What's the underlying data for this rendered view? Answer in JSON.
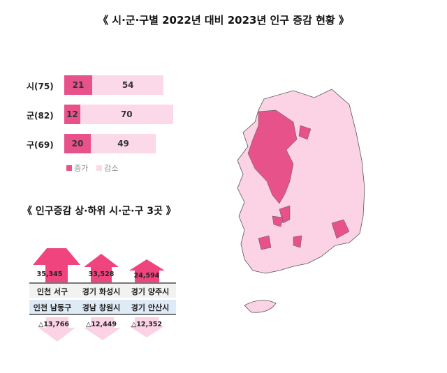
{
  "title": "《 시·군·구별 2022년 대비 2023년 인구 증감 현황 》",
  "chart_data": {
    "type": "bar",
    "stacked": true,
    "orientation": "horizontal",
    "categories": [
      "시(75)",
      "군(82)",
      "구(69)"
    ],
    "series": [
      {
        "name": "증가",
        "values": [
          21,
          12,
          20
        ],
        "color": "#e8528a"
      },
      {
        "name": "감소",
        "values": [
          54,
          70,
          49
        ],
        "color": "#fcd9e8"
      }
    ],
    "legend": "bottom"
  },
  "subtitle": "《 인구증감 상·하위 시·군·구 3곳 》",
  "top": [
    {
      "name": "인천 서구",
      "value": "35,345"
    },
    {
      "name": "경기 화성시",
      "value": "33,528"
    },
    {
      "name": "경기 양주시",
      "value": "24,594"
    }
  ],
  "bottom": [
    {
      "name": "인천 남동구",
      "value": "△13,766"
    },
    {
      "name": "경남 창원시",
      "value": "△12,449"
    },
    {
      "name": "경기 안산시",
      "value": "△12,352"
    }
  ],
  "colors": {
    "increase": "#e8528a",
    "decrease": "#fcd9e8",
    "up_arrow": "#f0447f",
    "down_arrow": "#fbd3e4"
  }
}
